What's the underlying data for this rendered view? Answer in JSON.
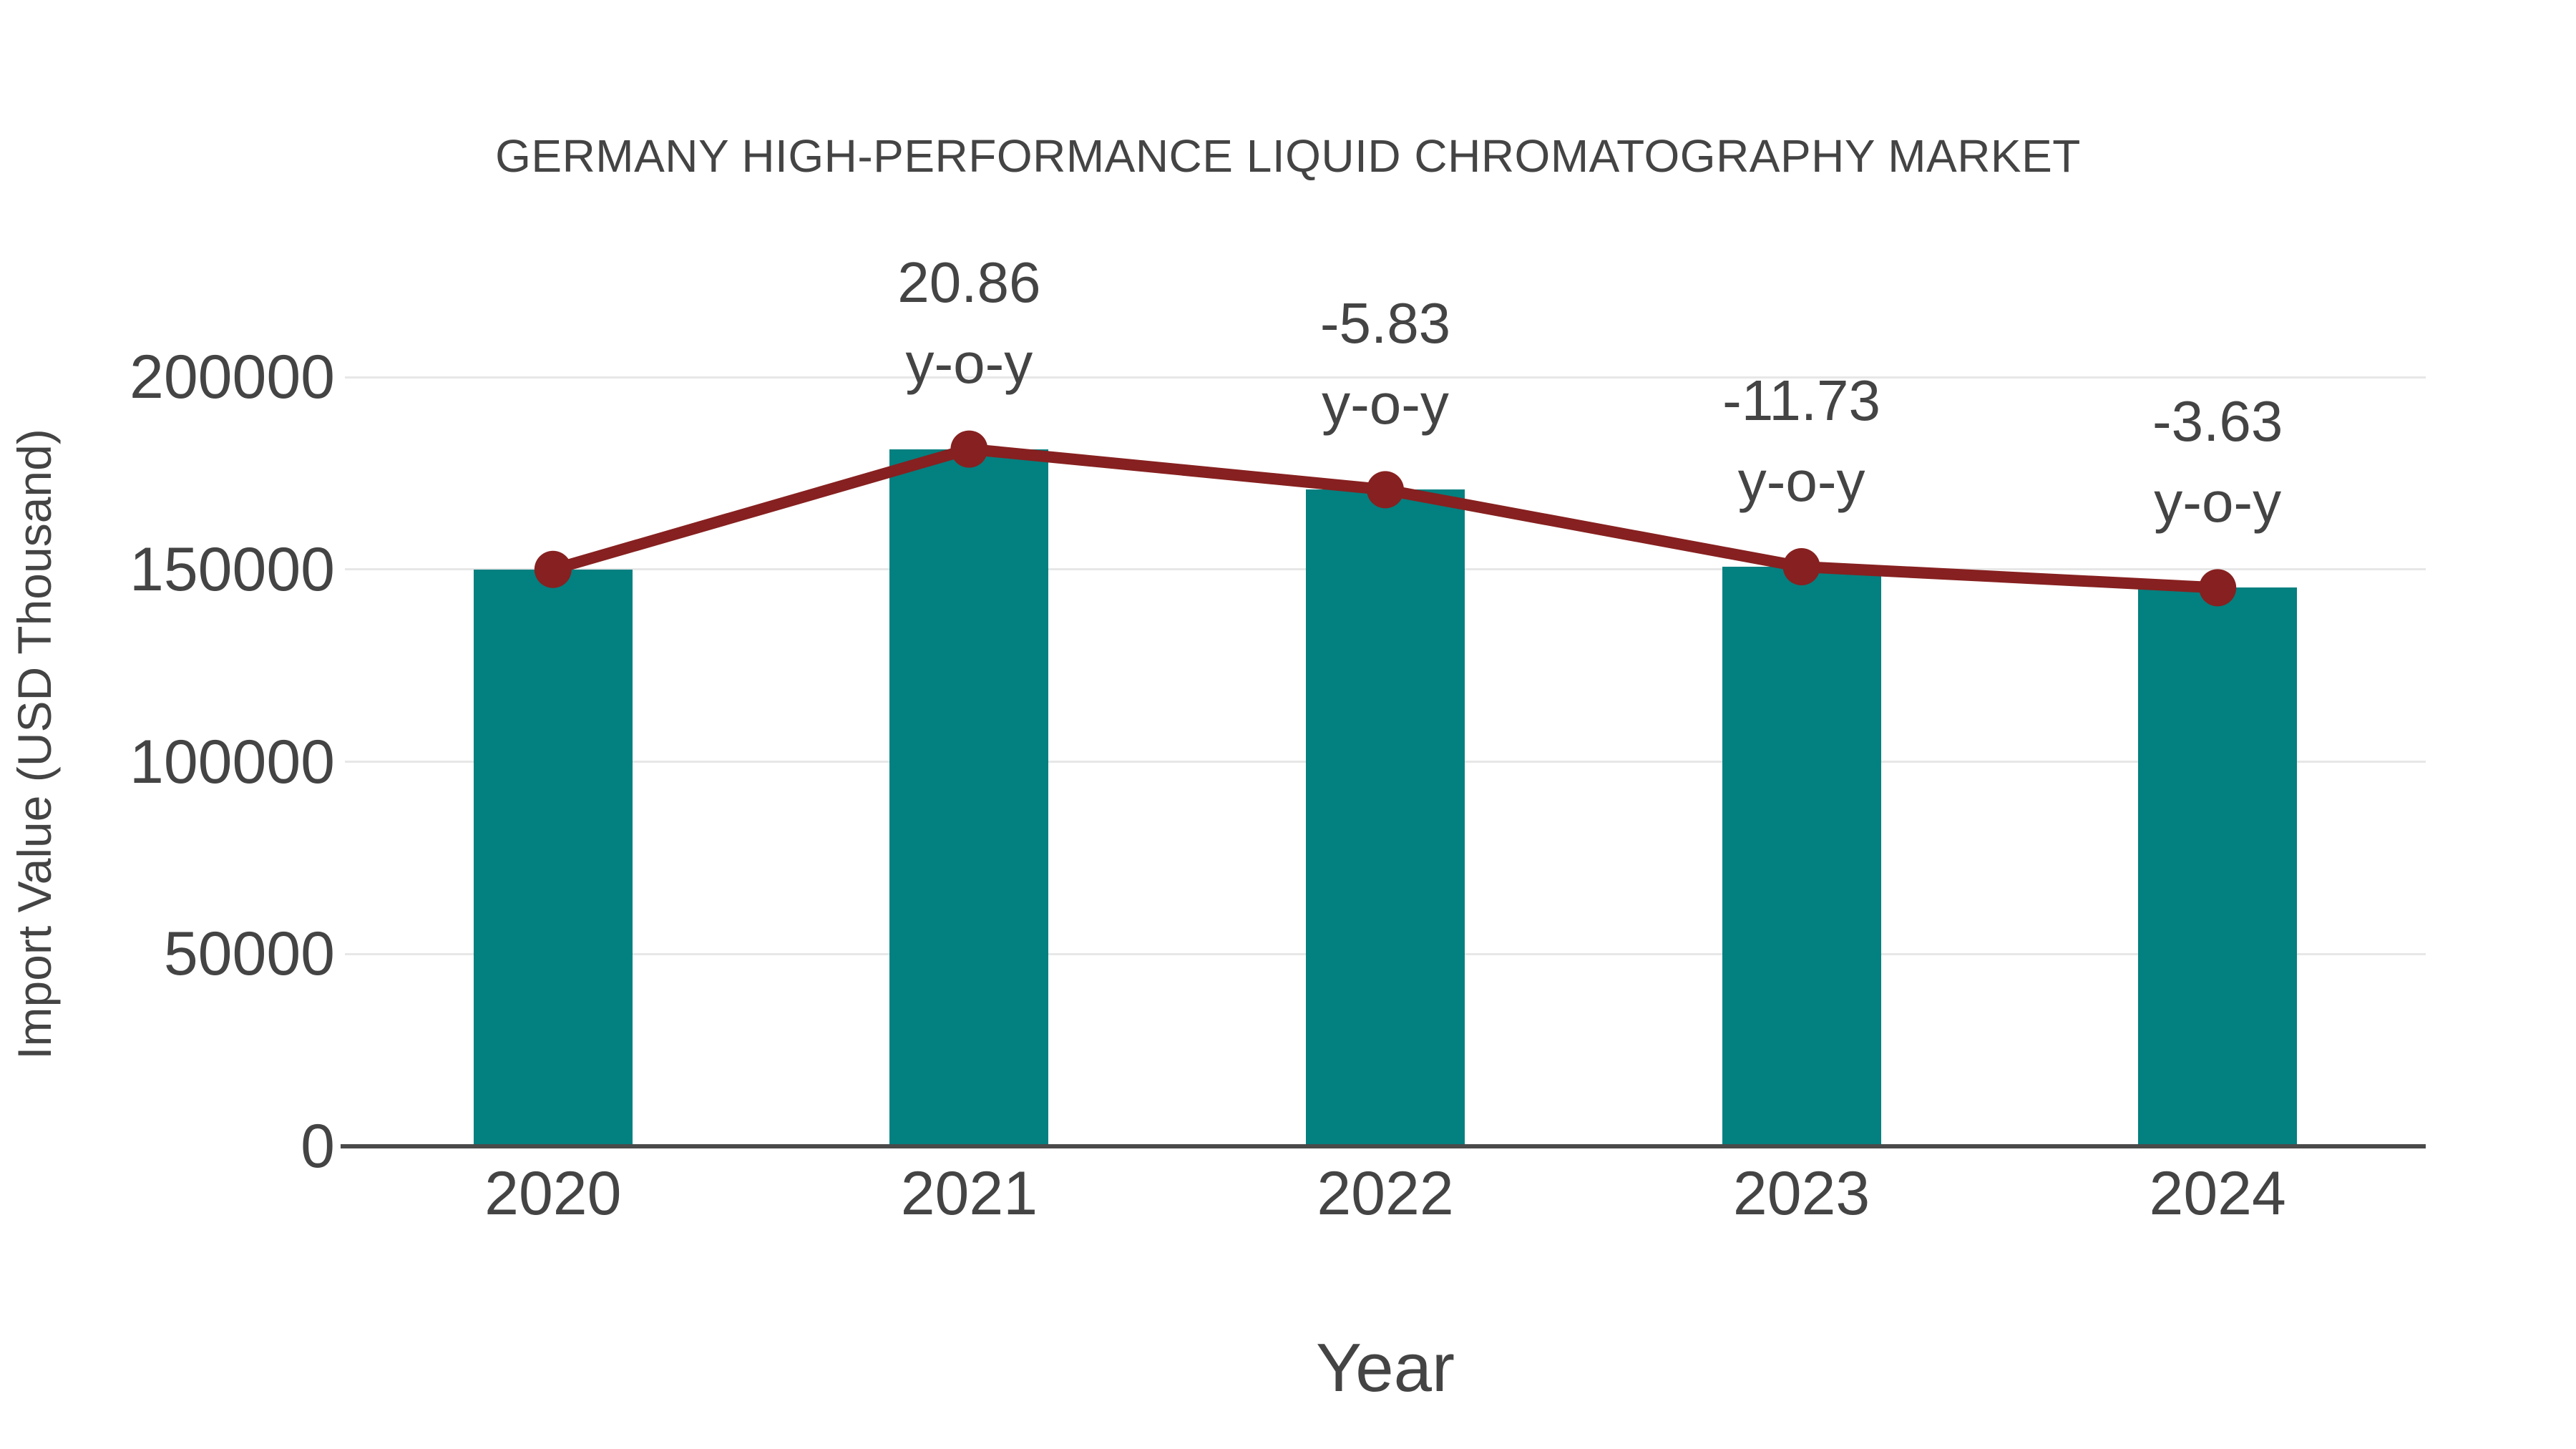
{
  "chart_data": {
    "type": "bar",
    "title": "GERMANY HIGH-PERFORMANCE LIQUID CHROMATOGRAPHY MARKET",
    "xlabel": "Year",
    "ylabel": "Import Value (USD Thousand)",
    "categories": [
      "2020",
      "2021",
      "2022",
      "2023",
      "2024"
    ],
    "series": [
      {
        "name": "Import Value bars",
        "type": "bar",
        "values": [
          150000,
          181290,
          170721,
          150695,
          145225
        ]
      },
      {
        "name": "Import Value trend line with markers",
        "type": "line",
        "values": [
          150000,
          181290,
          170721,
          150695,
          145225
        ]
      }
    ],
    "annotations": [
      {
        "category": "2021",
        "line1": "20.86",
        "line2": "y-o-y"
      },
      {
        "category": "2022",
        "line1": "-5.83",
        "line2": "y-o-y"
      },
      {
        "category": "2023",
        "line1": "-11.73",
        "line2": "y-o-y"
      },
      {
        "category": "2024",
        "line1": "-3.63",
        "line2": "y-o-y"
      }
    ],
    "yticks": [
      0,
      50000,
      100000,
      150000,
      200000
    ],
    "ylim": [
      0,
      200000
    ],
    "grid": true,
    "legend_position": "none",
    "colors": {
      "bar": "#038080",
      "line": "#872020",
      "text": "#444444",
      "grid": "#e7e7e7",
      "axis": "#4a4a4a"
    }
  }
}
